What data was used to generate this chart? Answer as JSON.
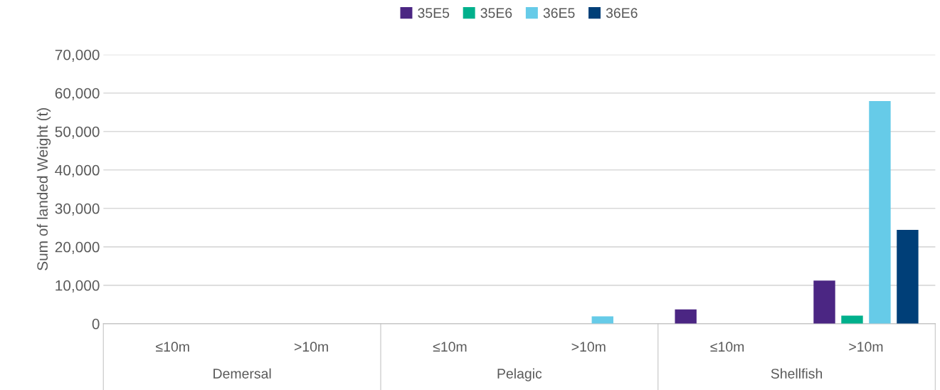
{
  "chart_data": {
    "type": "bar",
    "ylabel": "Sum of landed Weight (t)",
    "categories": [
      "≤10m",
      ">10m",
      "≤10m",
      ">10m",
      "≤10m",
      ">10m"
    ],
    "annotations": [
      "Demersal",
      "Pelagic",
      "Shellfish"
    ],
    "series": [
      {
        "name": "35E5",
        "color": "#4b2683",
        "values": [
          0,
          0,
          0,
          0,
          3700,
          11200
        ]
      },
      {
        "name": "35E6",
        "color": "#00b08c",
        "values": [
          0,
          0,
          0,
          0,
          0,
          2100
        ]
      },
      {
        "name": "36E5",
        "color": "#66cbe8",
        "values": [
          0,
          0,
          0,
          1900,
          0,
          57900
        ]
      },
      {
        "name": "36E6",
        "color": "#003f78",
        "values": [
          0,
          0,
          0,
          0,
          0,
          24400
        ]
      }
    ],
    "ylim": [
      0,
      70000
    ],
    "yticks": [
      {
        "value": 0,
        "label": "0"
      },
      {
        "value": 10000,
        "label": "10,000"
      },
      {
        "value": 20000,
        "label": "20,000"
      },
      {
        "value": 30000,
        "label": "30,000"
      },
      {
        "value": 40000,
        "label": "40,000"
      },
      {
        "value": 50000,
        "label": "50,000"
      },
      {
        "value": 60000,
        "label": "60,000"
      },
      {
        "value": 70000,
        "label": "70,000"
      }
    ],
    "grid": "y",
    "legend": "top"
  }
}
